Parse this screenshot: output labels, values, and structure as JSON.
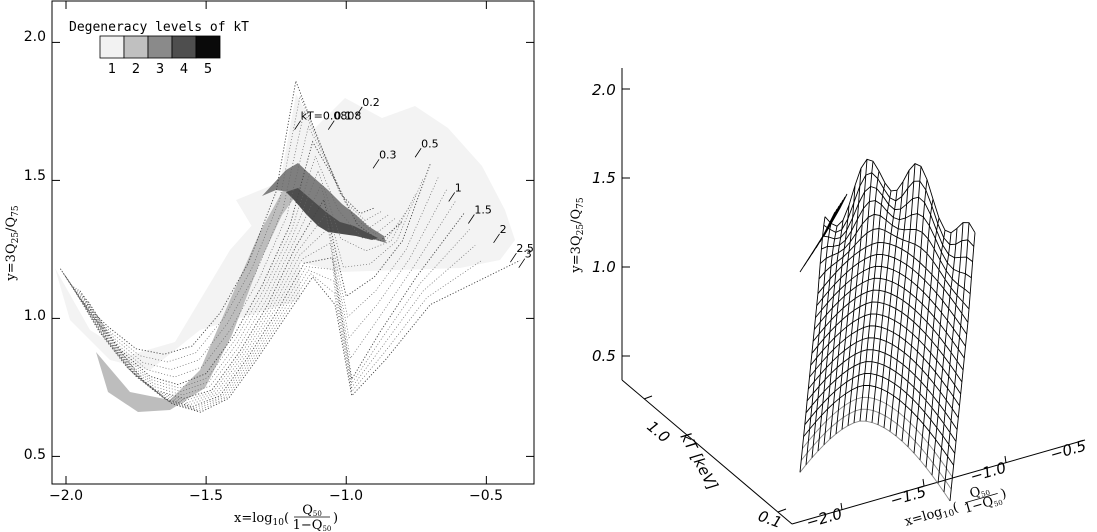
{
  "chart_data": [
    {
      "type": "area",
      "title": "",
      "xlabel": "x=log10(Q50/1−Q50)",
      "ylabel": "y=3Q25/Q75",
      "xlim": [
        -2.05,
        -0.33
      ],
      "ylim": [
        0.4,
        2.15
      ],
      "xticks": [
        -2.0,
        -1.5,
        -1.0,
        -0.5
      ],
      "yticks": [
        0.5,
        1.0,
        1.5,
        2.0
      ],
      "xtick_labels": [
        "−2.0",
        "−1.5",
        "−1.0",
        "−0.5"
      ],
      "ytick_labels": [
        "0.5",
        "1.0",
        "1.5",
        "2.0"
      ],
      "xlabel_parts": {
        "lhs": "x=log",
        "base": "10",
        "num": "Q",
        "num_sub": "50",
        "den": "1−Q",
        "den_sub": "50"
      },
      "ylabel_parts": {
        "lhs": "y=3Q",
        "s1": "25",
        "mid": "/Q",
        "s2": "75"
      },
      "legend": {
        "title": "Degeneracy levels of kT",
        "position": "top-left",
        "items": [
          {
            "label": "1",
            "color": "#f2f2f2"
          },
          {
            "label": "2",
            "color": "#c0c0c0"
          },
          {
            "label": "3",
            "color": "#8a8a8a"
          },
          {
            "label": "4",
            "color": "#4e4e4e"
          },
          {
            "label": "5",
            "color": "#0a0a0a"
          }
        ]
      },
      "curve_labels": [
        {
          "text": "kT=0.0808",
          "x": -1.17,
          "y": 1.72
        },
        {
          "text": "0.1",
          "x": -1.05,
          "y": 1.72
        },
        {
          "text": "0.2",
          "x": -0.95,
          "y": 1.77
        },
        {
          "text": "0.3",
          "x": -0.89,
          "y": 1.58
        },
        {
          "text": "0.5",
          "x": -0.74,
          "y": 1.62
        },
        {
          "text": "1",
          "x": -0.62,
          "y": 1.46
        },
        {
          "text": "1.5",
          "x": -0.55,
          "y": 1.38
        },
        {
          "text": "2",
          "x": -0.46,
          "y": 1.31
        },
        {
          "text": "2.5",
          "x": -0.4,
          "y": 1.24
        },
        {
          "text": "3",
          "x": -0.37,
          "y": 1.22
        }
      ],
      "series": [
        {
          "kT": 0.0808,
          "x": [
            -2.02,
            -1.95,
            -1.85,
            -1.75,
            -1.65,
            -1.55,
            -1.45,
            -1.35,
            -1.25,
            -1.18,
            -1.1,
            -1.02,
            -0.95,
            -0.9
          ],
          "y": [
            1.18,
            1.07,
            0.97,
            0.89,
            0.87,
            0.9,
            1.02,
            1.2,
            1.46,
            1.86,
            1.65,
            1.45,
            1.38,
            1.4
          ]
        },
        {
          "kT": 0.2,
          "x": [
            -2.0,
            -1.9,
            -1.8,
            -1.7,
            -1.6,
            -1.5,
            -1.4,
            -1.3,
            -1.2,
            -1.12,
            -1.04,
            -0.96,
            -0.88,
            -0.8
          ],
          "y": [
            1.15,
            1.0,
            0.88,
            0.79,
            0.76,
            0.8,
            0.94,
            1.12,
            1.34,
            1.64,
            1.5,
            1.34,
            1.28,
            1.35
          ]
        },
        {
          "kT": 0.5,
          "x": [
            -1.98,
            -1.88,
            -1.78,
            -1.68,
            -1.58,
            -1.48,
            -1.38,
            -1.28,
            -1.18,
            -1.08,
            -1.0,
            -0.9,
            -0.8,
            -0.7
          ],
          "y": [
            1.12,
            0.95,
            0.82,
            0.74,
            0.71,
            0.74,
            0.88,
            1.05,
            1.26,
            1.43,
            1.08,
            1.15,
            1.28,
            1.56
          ]
        },
        {
          "kT": 1.5,
          "x": [
            -1.95,
            -1.85,
            -1.75,
            -1.65,
            -1.55,
            -1.45,
            -1.35,
            -1.25,
            -1.15,
            -1.05,
            -0.98,
            -0.88,
            -0.75,
            -0.58
          ],
          "y": [
            1.1,
            0.92,
            0.79,
            0.71,
            0.68,
            0.72,
            0.86,
            1.02,
            1.2,
            1.22,
            0.78,
            0.95,
            1.15,
            1.38
          ]
        },
        {
          "kT": 3.0,
          "x": [
            -1.92,
            -1.82,
            -1.72,
            -1.62,
            -1.52,
            -1.42,
            -1.32,
            -1.22,
            -1.12,
            -1.04,
            -0.98,
            -0.86,
            -0.7,
            -0.5,
            -0.38
          ],
          "y": [
            1.06,
            0.9,
            0.77,
            0.69,
            0.66,
            0.71,
            0.85,
            1.0,
            1.15,
            1.05,
            0.72,
            0.85,
            1.05,
            1.15,
            1.21
          ]
        }
      ]
    },
    {
      "type": "surface3d",
      "title": "",
      "ylabel": "y=3Q25/Q75",
      "xlabel": "x=log10(Q50/1−Q50)",
      "zlabel": "kT [keV]",
      "ylabel_parts": {
        "lhs": "y=3Q",
        "s1": "25",
        "mid": "/Q",
        "s2": "75"
      },
      "xlabel_parts": {
        "lhs": "x=log",
        "base": "10",
        "num": "Q",
        "num_sub": "50",
        "den": "1−Q",
        "den_sub": "50"
      },
      "yticks": [
        0.5,
        1.0,
        1.5,
        2.0
      ],
      "ytick_labels": [
        "0.5",
        "1.0",
        "1.5",
        "2.0"
      ],
      "xtick_labels": [
        "−2.0",
        "−1.5",
        "−1.0",
        "−0.5"
      ],
      "ktick_labels": [
        "1.0",
        "0.1"
      ]
    }
  ]
}
